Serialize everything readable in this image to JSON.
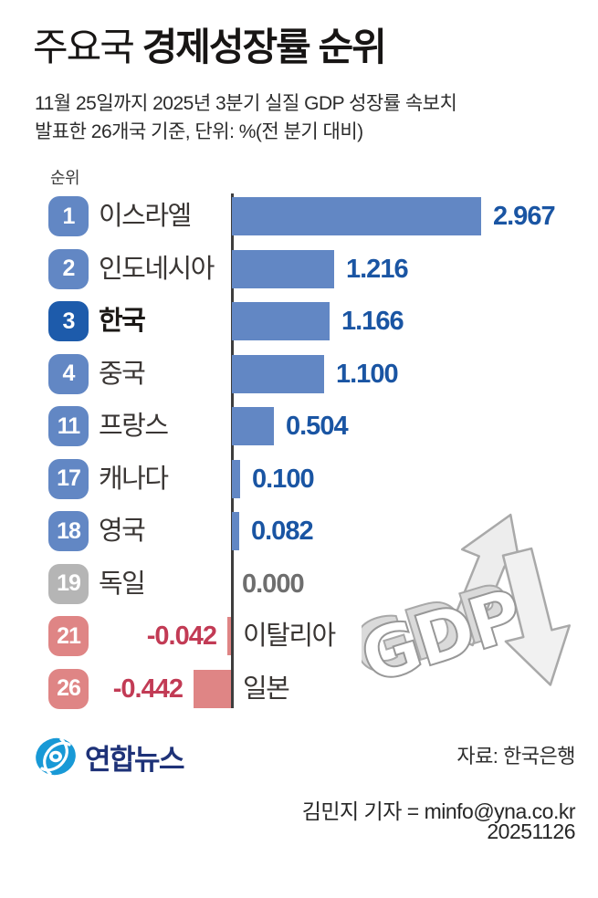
{
  "title": {
    "light": "주요국",
    "bold": "경제성장률 순위"
  },
  "subtitle_line1": "11월 25일까지 2025년 3분기 실질 GDP 성장률 속보치",
  "subtitle_line2": "발표한 26개국 기준, 단위: %(전 분기 대비)",
  "rank_header": "순위",
  "chart_data": {
    "type": "bar",
    "orientation": "horizontal",
    "title": "주요국 경제성장률 순위",
    "unit": "%(전 분기 대비)",
    "baseline": 0,
    "rows": [
      {
        "rank": "1",
        "country": "이스라엘",
        "value": 2.967,
        "value_label": "2.967",
        "style": "blue"
      },
      {
        "rank": "2",
        "country": "인도네시아",
        "value": 1.216,
        "value_label": "1.216",
        "style": "blue"
      },
      {
        "rank": "3",
        "country": "한국",
        "value": 1.166,
        "value_label": "1.166",
        "style": "highlight"
      },
      {
        "rank": "4",
        "country": "중국",
        "value": 1.1,
        "value_label": "1.100",
        "style": "blue"
      },
      {
        "rank": "11",
        "country": "프랑스",
        "value": 0.504,
        "value_label": "0.504",
        "style": "blue"
      },
      {
        "rank": "17",
        "country": "캐나다",
        "value": 0.1,
        "value_label": "0.100",
        "style": "blue"
      },
      {
        "rank": "18",
        "country": "영국",
        "value": 0.082,
        "value_label": "0.082",
        "style": "blue"
      },
      {
        "rank": "19",
        "country": "독일",
        "value": 0.0,
        "value_label": "0.000",
        "style": "gray"
      },
      {
        "rank": "21",
        "country": "이탈리아",
        "value": -0.042,
        "value_label": "-0.042",
        "style": "red"
      },
      {
        "rank": "26",
        "country": "일본",
        "value": -0.442,
        "value_label": "-0.442",
        "style": "red"
      }
    ]
  },
  "colors": {
    "bar_positive": "#6287c4",
    "bar_negative": "#df8585",
    "badge_highlight": "#1d5bab",
    "badge_gray": "#b5b5b5",
    "value_positive": "#1a55a3",
    "value_zero": "#6e6e6e",
    "value_negative": "#c23b55",
    "logo_blue": "#1899d6",
    "logo_navy": "#1e3278"
  },
  "gdp_graphic": {
    "label": "GDP"
  },
  "footer": {
    "logo_text": "연합뉴스",
    "source": "자료: 한국은행",
    "byline": "김민지 기자 = minfo@yna.co.kr",
    "date": "20251126"
  }
}
